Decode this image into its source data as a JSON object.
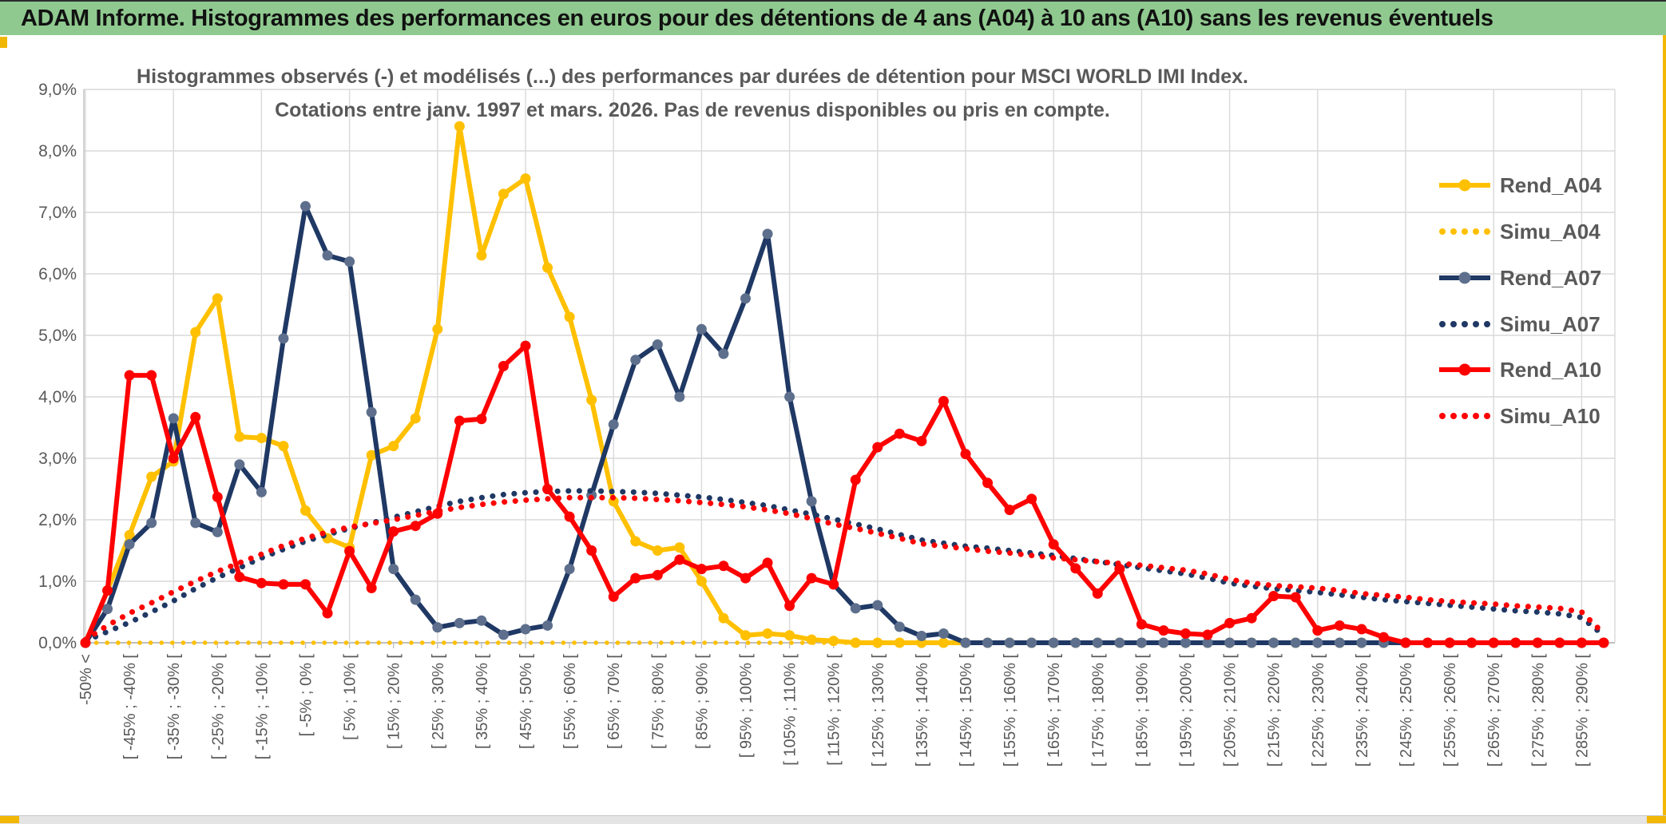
{
  "window": {
    "title": "ADAM Informe. Histogrammes des performances en euros pour des détentions de 4 ans (A04) à 10 ans (A10) sans les revenus éventuels",
    "title_bar_color": "#8FC98F",
    "selection_border_color": "#F2B705"
  },
  "chart_data": {
    "type": "line",
    "title": "Histogrammes observés (-) et modélisés (...) des performances par durées de détention pour MSCI WORLD IMI Index.",
    "subtitle": "Cotations entre janv. 1997 et mars. 2026. Pas de revenus disponibles ou pris en compte.",
    "text_color": "#595959",
    "grid": true,
    "gridline_color": "#D9D9D9",
    "axis_color": "#BFBFBF",
    "ylabel": "",
    "xlabel": "",
    "ylim": [
      0,
      9
    ],
    "y_tick_labels": [
      "0,0%",
      "1,0%",
      "2,0%",
      "3,0%",
      "4,0%",
      "5,0%",
      "6,0%",
      "7,0%",
      "8,0%",
      "9,0%"
    ],
    "bins": 70,
    "x_tick_labels_every_other_bin": [
      "-50% <",
      "[ -45% ; -40% [",
      "[ -35% ; -30% [",
      "[ -25% ; -20% [",
      "[ -15% ; -10% [",
      "[ -5% ; 0% [",
      "[ 5% ; 10% [",
      "[ 15% ; 20% [",
      "[ 25% ; 30% [",
      "[ 35% ; 40% [",
      "[ 45% ; 50% [",
      "[ 55% ; 60% [",
      "[ 65% ; 70% [",
      "[ 75% ; 80% [",
      "[ 85% ; 90% [",
      "[ 95% ; 100% [",
      "[ 105% ; 110% [",
      "[ 115% ; 120% [",
      "[ 125% ; 130% [",
      "[ 135% ; 140% [",
      "[ 145% ; 150% [",
      "[ 155% ; 160% [",
      "[ 165% ; 170% [",
      "[ 175% ; 180% [",
      "[ 185% ; 190% [",
      "[ 195% ; 200% [",
      "[ 205% ; 210% [",
      "[ 215% ; 220% [",
      "[ 225% ; 230% [",
      "[ 235% ; 240% [",
      "[ 245% ; 250% [",
      "[ 255% ; 260% [",
      "[ 265% ; 270% [",
      "[ 275% ; 280% [",
      "[ 285% ; 290% ["
    ],
    "legend": {
      "position": "right-top",
      "entries": [
        "Rend_A04",
        "Simu_A04",
        "Rend_A07",
        "Simu_A07",
        "Rend_A10",
        "Simu_A10"
      ]
    },
    "series": [
      {
        "name": "Rend_A04",
        "color": "#FFC000",
        "marker_color": "#FFC000",
        "style": "solid",
        "values": [
          0,
          0.85,
          1.75,
          2.7,
          2.95,
          5.05,
          5.6,
          3.35,
          3.33,
          3.2,
          2.15,
          1.7,
          1.55,
          3.05,
          3.2,
          3.65,
          5.1,
          8.4,
          6.3,
          7.3,
          7.55,
          6.1,
          5.3,
          3.95,
          2.3,
          1.65,
          1.5,
          1.55,
          1.0,
          0.4,
          0.12,
          0.15,
          0.12,
          0.05,
          0.03,
          0,
          0,
          0,
          0,
          0,
          0,
          0,
          0,
          0,
          0,
          0,
          0,
          0,
          0,
          0,
          0,
          0,
          0,
          0,
          0,
          0,
          0,
          0,
          0,
          0,
          0,
          0,
          0,
          0,
          0,
          0,
          0,
          0,
          0,
          0
        ]
      },
      {
        "name": "Simu_A04",
        "color": "#FFC000",
        "style": "dotted",
        "last_bin": 50,
        "values": [
          0,
          0,
          0,
          0,
          0,
          0,
          0,
          0,
          0,
          0,
          0,
          0,
          0,
          0,
          0,
          0,
          0,
          0,
          0,
          0,
          0,
          0,
          0,
          0,
          0,
          0,
          0,
          0,
          0,
          0,
          0,
          0,
          0,
          0,
          0,
          0,
          0,
          0,
          0,
          0,
          0,
          0,
          0,
          0,
          0,
          0,
          0,
          0,
          0,
          0,
          0,
          0,
          0,
          0,
          0,
          0,
          0,
          0,
          0,
          0,
          0,
          0,
          0,
          0,
          0,
          0,
          0,
          0,
          0,
          0
        ]
      },
      {
        "name": "Rend_A07",
        "color": "#1F3864",
        "marker_color": "#5D6F8C",
        "style": "solid",
        "values": [
          0,
          0.55,
          1.6,
          1.95,
          3.65,
          1.95,
          1.8,
          2.9,
          2.45,
          4.95,
          7.1,
          6.3,
          6.2,
          3.75,
          1.2,
          0.7,
          0.25,
          0.32,
          0.36,
          0.13,
          0.22,
          0.28,
          1.2,
          2.4,
          3.55,
          4.6,
          4.85,
          4.0,
          5.1,
          4.7,
          5.6,
          6.65,
          4.0,
          2.3,
          0.95,
          0.56,
          0.61,
          0.26,
          0.11,
          0.15,
          0,
          0,
          0,
          0,
          0,
          0,
          0,
          0,
          0,
          0,
          0,
          0,
          0,
          0,
          0,
          0,
          0,
          0,
          0,
          0,
          0,
          0,
          0,
          0,
          0,
          0,
          0,
          0,
          0,
          0
        ]
      },
      {
        "name": "Simu_A07",
        "color": "#1F3864",
        "style": "dotted",
        "values": [
          0.03,
          0.18,
          0.33,
          0.5,
          0.68,
          0.88,
          1.06,
          1.22,
          1.38,
          1.52,
          1.65,
          1.76,
          1.86,
          1.95,
          2.04,
          2.13,
          2.22,
          2.3,
          2.36,
          2.41,
          2.44,
          2.46,
          2.47,
          2.47,
          2.46,
          2.45,
          2.43,
          2.4,
          2.37,
          2.33,
          2.28,
          2.23,
          2.16,
          2.09,
          2.01,
          1.93,
          1.85,
          1.76,
          1.67,
          1.62,
          1.57,
          1.54,
          1.5,
          1.46,
          1.42,
          1.37,
          1.32,
          1.27,
          1.22,
          1.17,
          1.12,
          1.05,
          0.97,
          0.92,
          0.88,
          0.85,
          0.82,
          0.78,
          0.74,
          0.7,
          0.67,
          0.64,
          0.61,
          0.58,
          0.55,
          0.52,
          0.5,
          0.47,
          0.41,
          0.12
        ]
      },
      {
        "name": "Rend_A10",
        "color": "#FE0000",
        "marker_color": "#FE0000",
        "style": "solid",
        "values": [
          0,
          0.85,
          4.35,
          4.35,
          3.0,
          3.67,
          2.37,
          1.07,
          0.97,
          0.95,
          0.95,
          0.48,
          1.49,
          0.89,
          1.81,
          1.9,
          2.1,
          3.61,
          3.64,
          4.5,
          4.83,
          2.5,
          2.05,
          1.5,
          0.75,
          1.05,
          1.1,
          1.35,
          1.2,
          1.25,
          1.05,
          1.3,
          0.6,
          1.05,
          0.95,
          2.65,
          3.18,
          3.4,
          3.28,
          3.93,
          3.07,
          2.6,
          2.16,
          2.34,
          1.6,
          1.21,
          0.8,
          1.2,
          0.3,
          0.2,
          0.15,
          0.13,
          0.32,
          0.4,
          0.76,
          0.74,
          0.2,
          0.28,
          0.22,
          0.09,
          0,
          0,
          0,
          0,
          0,
          0,
          0,
          0,
          0,
          0
        ]
      },
      {
        "name": "Simu_A10",
        "color": "#FE0000",
        "style": "dotted",
        "values": [
          0.05,
          0.28,
          0.48,
          0.65,
          0.83,
          1.0,
          1.16,
          1.3,
          1.44,
          1.58,
          1.7,
          1.8,
          1.88,
          1.94,
          2.0,
          2.07,
          2.14,
          2.2,
          2.25,
          2.29,
          2.32,
          2.34,
          2.36,
          2.36,
          2.36,
          2.35,
          2.33,
          2.31,
          2.28,
          2.25,
          2.21,
          2.16,
          2.1,
          2.02,
          1.93,
          1.86,
          1.78,
          1.7,
          1.61,
          1.57,
          1.53,
          1.49,
          1.46,
          1.42,
          1.38,
          1.35,
          1.32,
          1.29,
          1.26,
          1.22,
          1.18,
          1.12,
          1.03,
          0.97,
          0.93,
          0.91,
          0.89,
          0.85,
          0.8,
          0.77,
          0.74,
          0.7,
          0.67,
          0.65,
          0.63,
          0.6,
          0.58,
          0.56,
          0.5,
          0.15
        ]
      }
    ]
  }
}
